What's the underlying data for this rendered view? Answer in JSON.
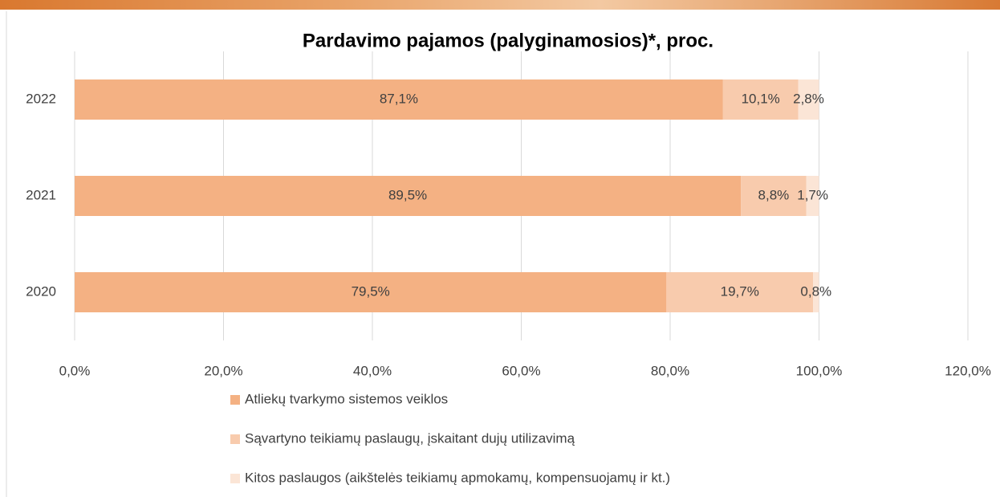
{
  "chart_data": {
    "type": "stacked-bar-horizontal",
    "title": "Pardavimo pajamos (palyginamosios)*, proc.",
    "categories": [
      "2022",
      "2021",
      "2020"
    ],
    "series": [
      {
        "name": "Atliekų tvarkymo sistemos veiklos",
        "color": "#f4b183",
        "values": [
          87.1,
          89.5,
          79.5
        ],
        "value_labels": [
          "87,1%",
          "89,5%",
          "79,5%"
        ]
      },
      {
        "name": "Sąvartyno teikiamų paslaugų, įskaitant dujų utilizavimą",
        "color": "#f8cbad",
        "values": [
          10.1,
          8.8,
          19.7
        ],
        "value_labels": [
          "10,1%",
          "8,8%",
          "19,7%"
        ]
      },
      {
        "name": "Kitos paslaugos (aikštelės teikiamų apmokamų, kompensuojamų ir kt.)",
        "color": "#fbe5d6",
        "values": [
          2.8,
          1.7,
          0.8
        ],
        "value_labels": [
          "2,8%",
          "1,7%",
          "0,8%"
        ]
      }
    ],
    "xlim": [
      0,
      120
    ],
    "xticks": [
      {
        "value": 0,
        "label": "0,0%"
      },
      {
        "value": 20,
        "label": "20,0%"
      },
      {
        "value": 40,
        "label": "40,0%"
      },
      {
        "value": 60,
        "label": "60,0%"
      },
      {
        "value": 80,
        "label": "80,0%"
      },
      {
        "value": 100,
        "label": "100,0%"
      },
      {
        "value": 120,
        "label": "120,0%"
      }
    ],
    "grid": true
  }
}
